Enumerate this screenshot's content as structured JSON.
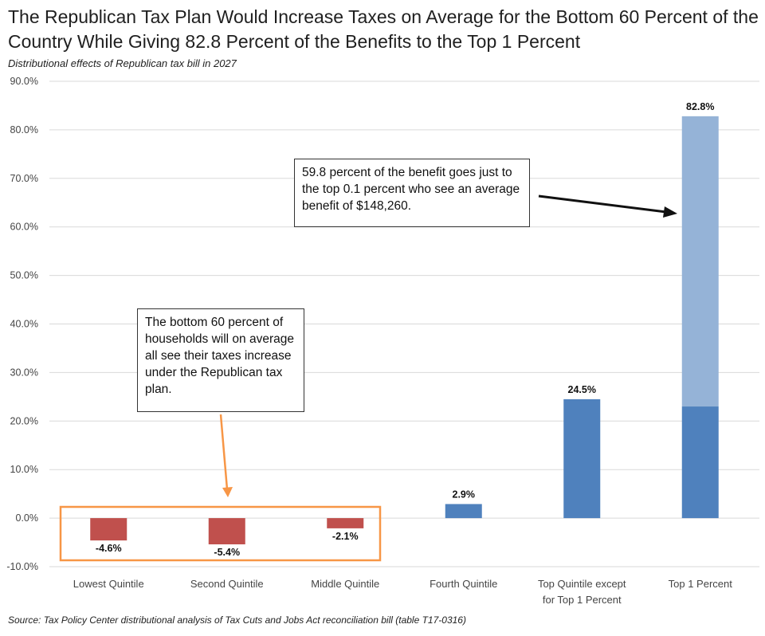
{
  "chart_data": {
    "type": "bar",
    "title": "The Republican Tax Plan Would Increase Taxes on Average for the Bottom 60 Percent of the Country While Giving 82.8 Percent of the Benefits to the Top 1 Percent",
    "subtitle": "Distributional  effects of Republican tax bill in 2027",
    "source": "Source: Tax Policy Center distributional analysis of Tax Cuts and Jobs Act reconciliation bill (table T17-0316)",
    "categories": [
      [
        "Lowest Quintile"
      ],
      [
        "Second Quintile"
      ],
      [
        "Middle Quintile"
      ],
      [
        "Fourth Quintile"
      ],
      [
        "Top Quintile except",
        "for Top 1 Percent"
      ],
      [
        "Top 1 Percent"
      ]
    ],
    "values": [
      -4.6,
      -5.4,
      -2.1,
      2.9,
      24.5,
      82.8
    ],
    "value_labels": [
      "-4.6%",
      "-5.4%",
      "-2.1%",
      "2.9%",
      "24.5%",
      "82.8%"
    ],
    "stacked_top1": {
      "lower_segment": 23.0,
      "upper_segment": 59.8
    },
    "ylim": [
      -10,
      90
    ],
    "yticks": [
      "-10.0%",
      "0.0%",
      "10.0%",
      "20.0%",
      "30.0%",
      "40.0%",
      "50.0%",
      "60.0%",
      "70.0%",
      "80.0%",
      "90.0%"
    ],
    "grid": true,
    "xlabel": "",
    "ylabel": "",
    "annotations": [
      "59.8 percent of the benefit goes just to the top 0.1 percent who see an average benefit of $148,260.",
      "The bottom 60 percent of households will on average all see their taxes increase under the Republican tax plan."
    ]
  },
  "colors": {
    "negative": "#c0504d",
    "positive": "#4f81bd",
    "top01": "#95b3d7",
    "highlight_box": "#f79646",
    "grid": "#d9d9d9"
  }
}
